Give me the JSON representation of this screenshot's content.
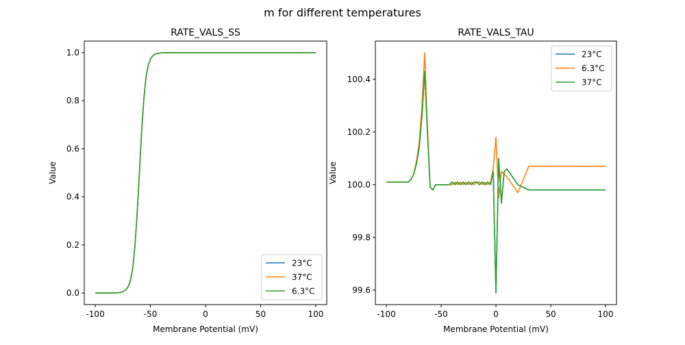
{
  "suptitle": "m for different temperatures",
  "chart_data": [
    {
      "type": "line",
      "title": "RATE_VALS_SS",
      "xlabel": "Membrane Potential (mV)",
      "ylabel": "Value",
      "xlim": [
        -110,
        110
      ],
      "ylim": [
        -0.048,
        1.048
      ],
      "xticks": [
        -100,
        -50,
        0,
        50,
        100
      ],
      "yticks": [
        0.0,
        0.2,
        0.4,
        0.6,
        0.8,
        1.0
      ],
      "ytick_labels": [
        "0.0",
        "0.2",
        "0.4",
        "0.6",
        "0.8",
        "1.0"
      ],
      "legend_position": "lower right",
      "grid": false,
      "x": [
        -100,
        -90,
        -80,
        -76,
        -72,
        -70,
        -68,
        -66,
        -64,
        -62,
        -60,
        -58,
        -56,
        -54,
        -52,
        -50,
        -48,
        -46,
        -44,
        -40,
        -30,
        0,
        50,
        100
      ],
      "series": [
        {
          "name": "23°C",
          "color": "#1f77b4",
          "values": [
            0,
            0,
            0.001,
            0.004,
            0.014,
            0.028,
            0.054,
            0.104,
            0.195,
            0.33,
            0.5,
            0.67,
            0.805,
            0.896,
            0.946,
            0.972,
            0.986,
            0.993,
            0.996,
            0.999,
            1,
            1,
            1,
            1
          ]
        },
        {
          "name": "37°C",
          "color": "#ff7f0e",
          "values": [
            0,
            0,
            0.001,
            0.004,
            0.014,
            0.028,
            0.054,
            0.104,
            0.195,
            0.33,
            0.5,
            0.67,
            0.805,
            0.896,
            0.946,
            0.972,
            0.986,
            0.993,
            0.996,
            0.999,
            1,
            1,
            1,
            1
          ]
        },
        {
          "name": "6.3°C",
          "color": "#2ca02c",
          "values": [
            0,
            0,
            0.001,
            0.004,
            0.014,
            0.028,
            0.054,
            0.104,
            0.195,
            0.33,
            0.5,
            0.67,
            0.805,
            0.896,
            0.946,
            0.972,
            0.986,
            0.993,
            0.996,
            0.999,
            1,
            1,
            1,
            1
          ]
        }
      ]
    },
    {
      "type": "line",
      "title": "RATE_VALS_TAU",
      "xlabel": "Membrane Potential (mV)",
      "ylabel": "Value",
      "xlim": [
        -110,
        110
      ],
      "ylim": [
        99.545,
        100.545
      ],
      "xticks": [
        -100,
        -50,
        0,
        50,
        100
      ],
      "yticks": [
        99.6,
        99.8,
        100.0,
        100.2,
        100.4
      ],
      "ytick_labels": [
        "99.6",
        "99.8",
        "100.0",
        "100.2",
        "100.4"
      ],
      "legend_position": "upper right",
      "grid": false,
      "x": [
        -100,
        -80,
        -77.5,
        -75,
        -72.5,
        -70,
        -67.5,
        -65,
        -62.5,
        -60,
        -57.5,
        -55,
        -42.5,
        -40,
        -37.5,
        -35,
        -32.5,
        -30,
        -27.5,
        -25,
        -22.5,
        -20,
        -17.5,
        -15,
        -12.5,
        -10,
        -7.5,
        -5,
        -2.5,
        0,
        2.5,
        5,
        7.5,
        10,
        20,
        30,
        100
      ],
      "series": [
        {
          "name": "23°C",
          "color": "#1f77b4",
          "values": [
            100.01,
            100.01,
            100.02,
            100.04,
            100.08,
            100.14,
            100.26,
            100.43,
            100.2,
            99.99,
            99.98,
            100.0,
            100.0,
            100.01,
            100.0,
            100.01,
            100.0,
            100.01,
            100.0,
            100.01,
            100.0,
            100.01,
            100.01,
            100.0,
            100.01,
            100.0,
            100.01,
            100.0,
            100.05,
            99.59,
            100.1,
            99.93,
            100.05,
            100.06,
            100.0,
            99.98,
            99.98
          ]
        },
        {
          "name": "6.3°C",
          "color": "#ff7f0e",
          "values": [
            100.01,
            100.01,
            100.02,
            100.04,
            100.09,
            100.16,
            100.3,
            100.5,
            100.22,
            99.99,
            99.98,
            100.0,
            100.0,
            100.0,
            100.01,
            100.0,
            100.01,
            100.0,
            100.01,
            100.0,
            100.01,
            100.0,
            100.01,
            100.01,
            100.0,
            100.01,
            100.0,
            100.01,
            100.06,
            100.18,
            99.95,
            100.05,
            100.04,
            100.03,
            99.97,
            100.07,
            100.07
          ]
        },
        {
          "name": "37°C",
          "color": "#2ca02c",
          "values": [
            100.01,
            100.01,
            100.02,
            100.04,
            100.08,
            100.14,
            100.26,
            100.43,
            100.2,
            99.99,
            99.98,
            100.0,
            100.0,
            100.01,
            100.0,
            100.01,
            100.0,
            100.01,
            100.0,
            100.01,
            100.0,
            100.01,
            100.01,
            100.0,
            100.01,
            100.0,
            100.01,
            100.0,
            100.05,
            99.59,
            100.1,
            99.93,
            100.05,
            100.06,
            100.0,
            99.98,
            99.98
          ]
        }
      ]
    }
  ]
}
